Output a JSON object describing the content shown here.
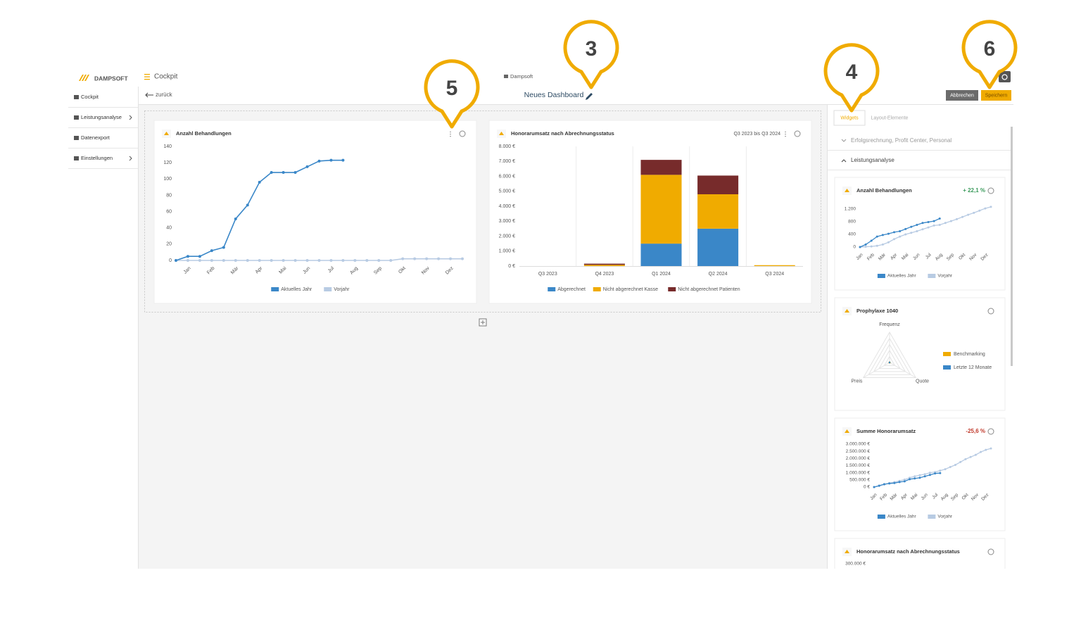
{
  "header": {
    "brand": "DAMPSOFT",
    "menu": "Cockpit",
    "org": "Dampsoft",
    "back": "zurück",
    "title": "Neues Dashboard",
    "cancel": "Abbrechen",
    "save": "Speichern"
  },
  "sidebar": [
    "Cockpit",
    "Leistungsanalyse",
    "Datenexport",
    "Einstellungen"
  ],
  "callouts": [
    5,
    3,
    4,
    6
  ],
  "dashboard": [
    {
      "title": "Anzahl Behandlungen",
      "chart": {
        "type": "line",
        "categories": [
          null,
          "Jan",
          null,
          "Feb",
          null,
          "Mär",
          null,
          "Apr",
          null,
          "Mai",
          null,
          "Jun",
          null,
          "Jul",
          null,
          "Aug",
          null,
          "Sep",
          null,
          "Okt",
          null,
          "Nov",
          null,
          "Dez",
          null
        ],
        "series": [
          {
            "name": "Aktuelles Jahr",
            "color": "#3a87c8",
            "values": [
              0,
              5,
              5,
              12,
              16,
              51,
              68,
              96,
              108,
              108,
              108,
              115,
              122,
              123,
              123,
              null,
              null,
              null,
              null,
              null,
              null,
              null,
              null,
              null,
              null
            ]
          },
          {
            "name": "Vorjahr",
            "color": "#b8cbe3",
            "values": [
              0,
              0,
              0,
              0,
              0,
              0,
              0,
              0,
              0,
              0,
              0,
              0,
              0,
              0,
              0,
              0,
              0,
              0,
              0,
              2,
              2,
              2,
              2,
              2,
              2
            ]
          }
        ],
        "ylim": [
          0,
          140
        ],
        "yticks": [
          0,
          20,
          40,
          60,
          80,
          100,
          120,
          140
        ]
      }
    },
    {
      "title": "Honorarumsatz nach Abrechnungsstatus",
      "subtitle": "Q3 2023 bis Q3 2024",
      "chart": {
        "type": "stacked_bar",
        "categories": [
          "Q3 2023",
          "Q4 2023",
          "Q1 2024",
          "Q2 2024",
          "Q3 2024"
        ],
        "series": [
          {
            "name": "Abgerechnet",
            "color": "#3a87c8",
            "values": [
              0,
              0,
              1500,
              2500,
              0
            ]
          },
          {
            "name": "Nicht abgerechnet Kasse",
            "color": "#f0ab00",
            "values": [
              0,
              80,
              4600,
              2300,
              60
            ]
          },
          {
            "name": "Nicht abgerechnet Patienten",
            "color": "#772b2b",
            "values": [
              0,
              80,
              1000,
              1250,
              0
            ]
          }
        ],
        "ylim": [
          0,
          8000
        ],
        "yticks": [
          {
            "value": 0,
            "label": "0 €"
          },
          {
            "value": 1000,
            "label": "1.000 €"
          },
          {
            "value": 2000,
            "label": "2.000 €"
          },
          {
            "value": 3000,
            "label": "3.000 €"
          },
          {
            "value": 4000,
            "label": "4.000 €"
          },
          {
            "value": 5000,
            "label": "5.000 €"
          },
          {
            "value": 6000,
            "label": "6.000 €"
          },
          {
            "value": 7000,
            "label": "7.000 €"
          },
          {
            "value": 8000,
            "label": "8.000 €"
          }
        ]
      }
    }
  ],
  "panel": {
    "tabs": [
      "Widgets",
      "Layout-Elemente"
    ],
    "sections": [
      "Erfolgsrechnung, Profit Center, Personal",
      "Leistungsanalyse"
    ],
    "widgets": [
      {
        "title": "Anzahl Behandlungen",
        "change": "+ 22,1 %",
        "chart": {
          "type": "line",
          "categories": [
            "Jan",
            null,
            "Feb",
            null,
            "Mär",
            null,
            "Apr",
            null,
            "Mai",
            null,
            "Jun",
            null,
            "Jul",
            null,
            "Aug",
            null,
            "Sep",
            null,
            "Okt",
            null,
            "Nov",
            null,
            "Dez",
            null
          ],
          "series": [
            {
              "name": "Aktuelles Jahr",
              "color": "#3a87c8",
              "values": [
                0,
                80,
                200,
                330,
                380,
                420,
                470,
                500,
                570,
                640,
                700,
                760,
                790,
                820,
                900,
                null,
                null,
                null,
                null,
                null,
                null,
                null,
                null,
                null
              ]
            },
            {
              "name": "Vorjahr",
              "color": "#b8cbe3",
              "values": [
                0,
                10,
                20,
                40,
                80,
                150,
                250,
                330,
                400,
                450,
                500,
                560,
                620,
                680,
                700,
                760,
                820,
                880,
                950,
                1020,
                1080,
                1150,
                1220,
                1270
              ]
            }
          ],
          "ylim": [
            0,
            1300
          ],
          "yticks": [
            0,
            400,
            800,
            {
              "value": 1200,
              "label": "1.200"
            }
          ]
        }
      },
      {
        "title": "Prophylaxe 1040",
        "chart": {
          "type": "radar",
          "axes": [
            "Frequenz",
            "Quote",
            "Preis"
          ],
          "rlim": [
            0,
            100
          ],
          "series": [
            {
              "name": "Benchmarking",
              "color": "#f0ab00",
              "values": [
                1,
                1,
                1
              ]
            },
            {
              "name": "Letzte 12 Monate",
              "color": "#3a87c8",
              "values": [
                0,
                0,
                0
              ]
            }
          ]
        }
      },
      {
        "title": "Summe Honorarumsatz",
        "change": "-25,6 %",
        "chart": {
          "type": "line",
          "categories": [
            "Jan",
            null,
            "Feb",
            null,
            "Mär",
            null,
            "Apr",
            null,
            "Mai",
            null,
            "Jun",
            null,
            "Jul",
            null,
            "Aug",
            null,
            "Sep",
            null,
            "Okt",
            null,
            "Nov",
            null,
            "Dez",
            null
          ],
          "series": [
            {
              "name": "Aktuelles Jahr",
              "color": "#3a87c8",
              "values": [
                0,
                100000,
                200000,
                250000,
                280000,
                350000,
                400000,
                550000,
                600000,
                650000,
                750000,
                850000,
                950000,
                980000,
                null,
                null,
                null,
                null,
                null,
                null,
                null,
                null,
                null,
                null
              ]
            },
            {
              "name": "Vorjahr",
              "color": "#b8cbe3",
              "values": [
                0,
                80000,
                180000,
                280000,
                350000,
                430000,
                520000,
                650000,
                750000,
                830000,
                900000,
                1000000,
                1050000,
                1150000,
                1250000,
                1400000,
                1550000,
                1750000,
                1950000,
                2100000,
                2250000,
                2450000,
                2600000,
                2700000
              ]
            }
          ],
          "ylim": [
            0,
            3000000
          ],
          "yticks": [
            {
              "value": 0,
              "label": "0 €"
            },
            {
              "value": 500000,
              "label": "500.000 €"
            },
            {
              "value": 1000000,
              "label": "1.000.000 €"
            },
            {
              "value": 1500000,
              "label": "1.500.000 €"
            },
            {
              "value": 2000000,
              "label": "2.000.000 €"
            },
            {
              "value": 2500000,
              "label": "2.500.000 €"
            },
            {
              "value": 3000000,
              "label": "3.000.000 €"
            }
          ]
        }
      },
      {
        "title": "Honorarumsatz nach Abrechnungsstatus",
        "chart": {
          "type": "stacked_bar",
          "categories": [],
          "series": [],
          "ylim": [
            0,
            300000
          ],
          "yticks": [
            {
              "value": 300000,
              "label": "300.000 €"
            }
          ]
        }
      }
    ]
  }
}
